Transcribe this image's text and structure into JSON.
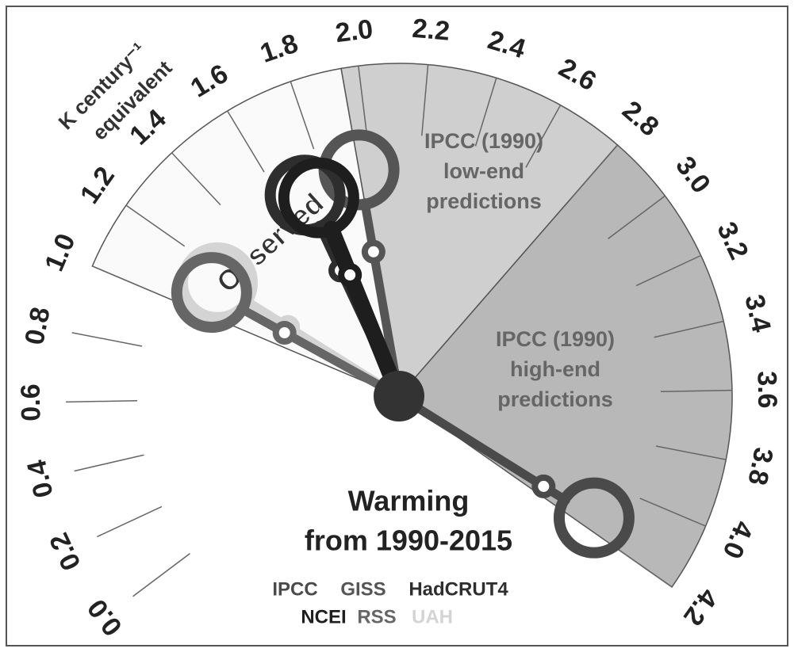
{
  "chart_data": {
    "type": "gauge",
    "axis_label": [
      "K century⁻¹",
      "equivalent"
    ],
    "title": [
      "Warming",
      "from 1990-2015"
    ],
    "lim": [
      0,
      4.2
    ],
    "ticks": [
      {
        "value": 0,
        "label": "0.0"
      },
      {
        "value": 0.2,
        "label": "0.2"
      },
      {
        "value": 0.4,
        "label": "0.4"
      },
      {
        "value": 0.6,
        "label": "0.6"
      },
      {
        "value": 0.8,
        "label": "0.8"
      },
      {
        "value": 1,
        "label": "1.0"
      },
      {
        "value": 1.2,
        "label": "1.2"
      },
      {
        "value": 1.4,
        "label": "1.4"
      },
      {
        "value": 1.6,
        "label": "1.6"
      },
      {
        "value": 1.8,
        "label": "1.8"
      },
      {
        "value": 2,
        "label": "2.0"
      },
      {
        "value": 2.2,
        "label": "2.2"
      },
      {
        "value": 2.4,
        "label": "2.4"
      },
      {
        "value": 2.6,
        "label": "2.6"
      },
      {
        "value": 2.8,
        "label": "2.8"
      },
      {
        "value": 3,
        "label": "3.0"
      },
      {
        "value": 3.2,
        "label": "3.2"
      },
      {
        "value": 3.4,
        "label": "3.4"
      },
      {
        "value": 3.6,
        "label": "3.6"
      },
      {
        "value": 3.8,
        "label": "3.8"
      },
      {
        "value": 4,
        "label": "4.0"
      },
      {
        "value": 4.2,
        "label": "4.2"
      }
    ],
    "bands": [
      {
        "name": "Observed",
        "range": [
          1.0,
          1.95
        ],
        "color": "#fafafa"
      },
      {
        "name": [
          "IPCC (1990)",
          "low-end",
          "predictions"
        ],
        "range": [
          1.95,
          2.8
        ],
        "color": "#cfcfcf"
      },
      {
        "name": [
          "IPCC (1990)",
          "high-end",
          "predictions"
        ],
        "range": [
          2.8,
          4.2
        ],
        "color": "#b8b8b8"
      }
    ],
    "series": [
      {
        "name": "IPCC",
        "color": "#4a4a4a",
        "values": [
          4.15
        ]
      },
      {
        "name": "GISS",
        "color": "#555555",
        "values": [
          1.95
        ]
      },
      {
        "name": "HadCRUT4",
        "color": "#2e2e2e",
        "values": [
          1.7
        ]
      },
      {
        "name": "NCEI",
        "color": "#1e1e1e",
        "values": [
          1.75
        ]
      },
      {
        "name": "RSS",
        "color": "#666666",
        "values": [
          1.1
        ]
      },
      {
        "name": "UAH",
        "color": "#d4d4d4",
        "values": [
          1.15
        ]
      }
    ]
  }
}
